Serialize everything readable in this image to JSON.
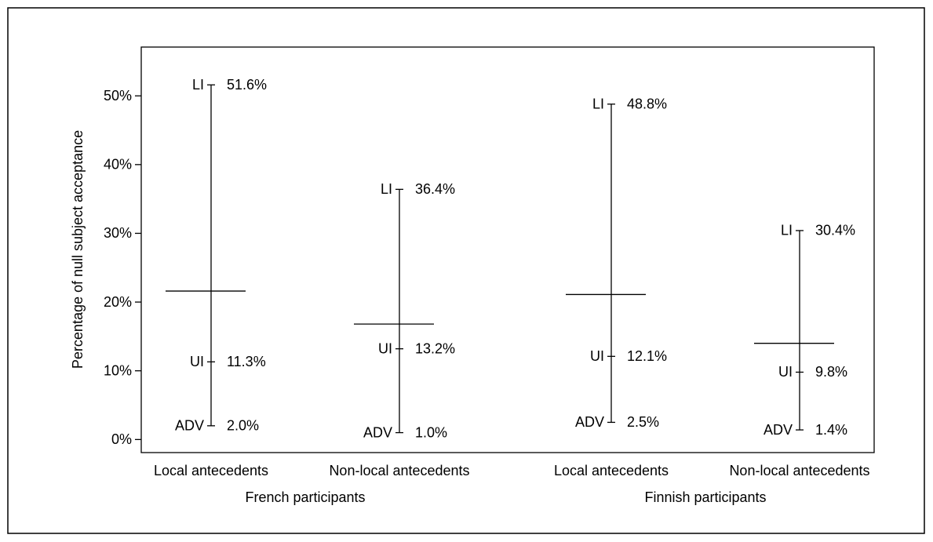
{
  "chart_data": {
    "type": "range",
    "y_label": "Percentage of null subject acceptance",
    "categories": [
      "Local antecedents",
      "Non-local antecedents",
      "Local antecedents",
      "Non-local antecedents"
    ],
    "groups": [
      "French participants",
      "Finnish participants"
    ],
    "color": "#000000",
    "series": [
      {
        "name": "LI",
        "values": [
          51.6,
          36.4,
          48.8,
          30.4
        ],
        "value_labels": [
          "51.6%",
          "36.4%",
          "48.8%",
          "30.4%"
        ]
      },
      {
        "name": "UI",
        "values": [
          11.3,
          13.2,
          12.1,
          9.8
        ],
        "value_labels": [
          "11.3%",
          "13.2%",
          "12.1%",
          "9.8%"
        ]
      },
      {
        "name": "ADV",
        "values": [
          2.0,
          1.0,
          2.5,
          1.4
        ],
        "value_labels": [
          "2.0%",
          "1.0%",
          "2.5%",
          "1.4%"
        ]
      }
    ],
    "means": [
      21.6,
      16.8,
      21.1,
      14.0
    ],
    "ylim": [
      -1.9,
      57.1
    ],
    "yticks": [
      {
        "value": 0,
        "label": "0%"
      },
      {
        "value": 10,
        "label": "10%"
      },
      {
        "value": 20,
        "label": "20%"
      },
      {
        "value": 30,
        "label": "30%"
      },
      {
        "value": 40,
        "label": "40%"
      },
      {
        "value": 50,
        "label": "50%"
      }
    ]
  }
}
